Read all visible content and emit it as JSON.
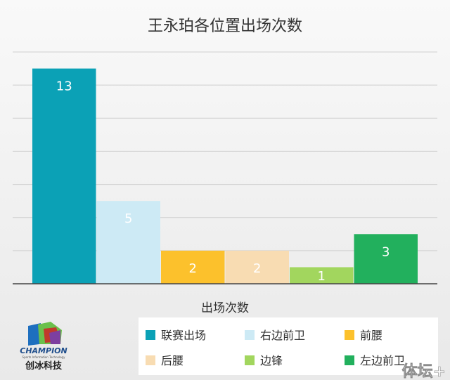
{
  "chart_data": {
    "type": "bar",
    "title": "王永珀各位置出场次数",
    "xlabel": "出场次数",
    "ylabel": "",
    "ylim": [
      0,
      14
    ],
    "grid": true,
    "legend_position": "bottom-right",
    "series": [
      {
        "name": "联赛出场",
        "value": 13,
        "color": "#0ba1b6"
      },
      {
        "name": "右边前卫",
        "value": 5,
        "color": "#cdeaf5"
      },
      {
        "name": "前腰",
        "value": 2,
        "color": "#fcc12c"
      },
      {
        "name": "后腰",
        "value": 2,
        "color": "#f8dcb2"
      },
      {
        "name": "边锋",
        "value": 1,
        "color": "#a2d65e"
      },
      {
        "name": "左边前卫",
        "value": 3,
        "color": "#22b05d"
      }
    ]
  },
  "logo": {
    "brand": "CHAMPION",
    "tagline": "Sports Information Technology",
    "cn_name": "创冰科技"
  },
  "watermark": "体坛+"
}
